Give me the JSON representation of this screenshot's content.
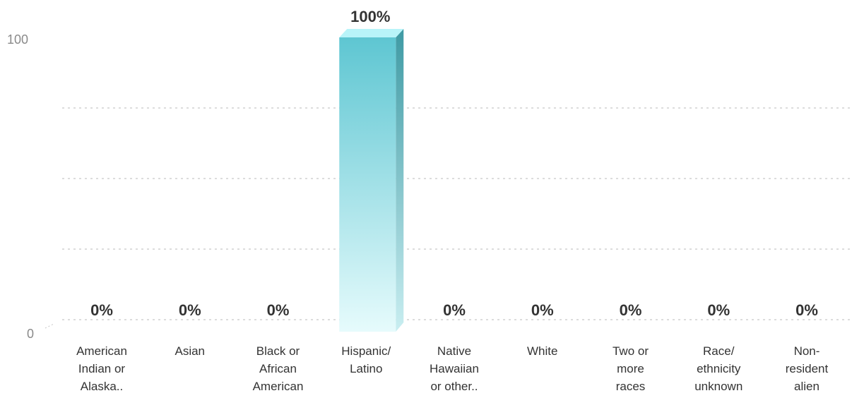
{
  "chart_data": {
    "type": "bar",
    "categories": [
      "American Indian or Alaska..",
      "Asian",
      "Black or African American",
      "Hispanic/ Latino",
      "Native Hawaiian or other..",
      "White",
      "Two or more races",
      "Race/ ethnicity unknown",
      "Non- resident alien"
    ],
    "category_lines": [
      [
        "American",
        "Indian or",
        "Alaska.."
      ],
      [
        "Asian"
      ],
      [
        "Black or",
        "African",
        "American"
      ],
      [
        "Hispanic/",
        "Latino"
      ],
      [
        "Native",
        "Hawaiian",
        "or other.."
      ],
      [
        "White"
      ],
      [
        "Two or",
        "more",
        "races"
      ],
      [
        "Race/",
        "ethnicity",
        "unknown"
      ],
      [
        "Non-",
        "resident",
        "alien"
      ]
    ],
    "values": [
      0,
      0,
      0,
      100,
      0,
      0,
      0,
      0,
      0
    ],
    "value_labels": [
      "0%",
      "0%",
      "0%",
      "100%",
      "0%",
      "0%",
      "0%",
      "0%",
      "0%"
    ],
    "ylim": [
      0,
      100
    ],
    "yticks": [
      {
        "value": 0,
        "label": "0"
      },
      {
        "value": 100,
        "label": "100"
      }
    ],
    "gridlines": [
      0,
      25,
      50,
      75
    ],
    "grid": true,
    "legend": "none",
    "title": "",
    "xlabel": "",
    "ylabel": "",
    "colors": {
      "bar_top": "#5ec6d2",
      "bar_bottom": "#e6fbfc",
      "bar_side": "#3f9aa4",
      "bar_cap": "#b8f4f9",
      "grid": "#c8c8c8",
      "tick_text": "#8a8a8a",
      "label_text": "#333333"
    }
  }
}
